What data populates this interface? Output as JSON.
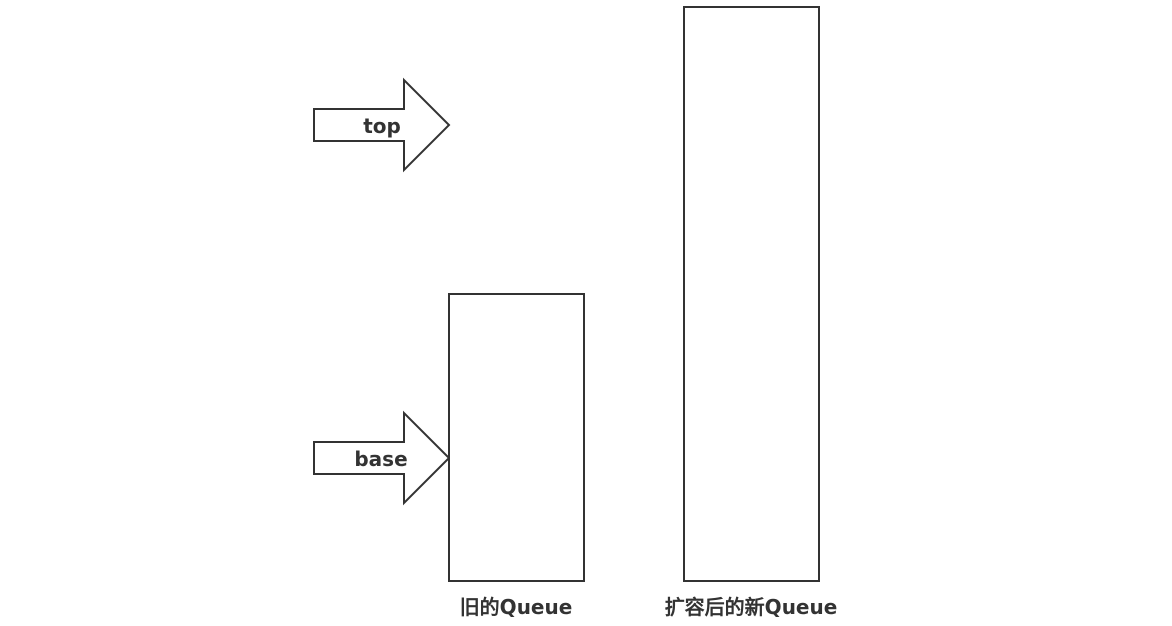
{
  "arrows": {
    "top": {
      "label": "top"
    },
    "base": {
      "label": "base"
    }
  },
  "queues": {
    "old": {
      "label": "旧的Queue"
    },
    "new": {
      "label": "扩容后的新Queue"
    }
  },
  "colors": {
    "stroke": "#333333",
    "fill": "#ffffff",
    "background": "#ffffff"
  }
}
